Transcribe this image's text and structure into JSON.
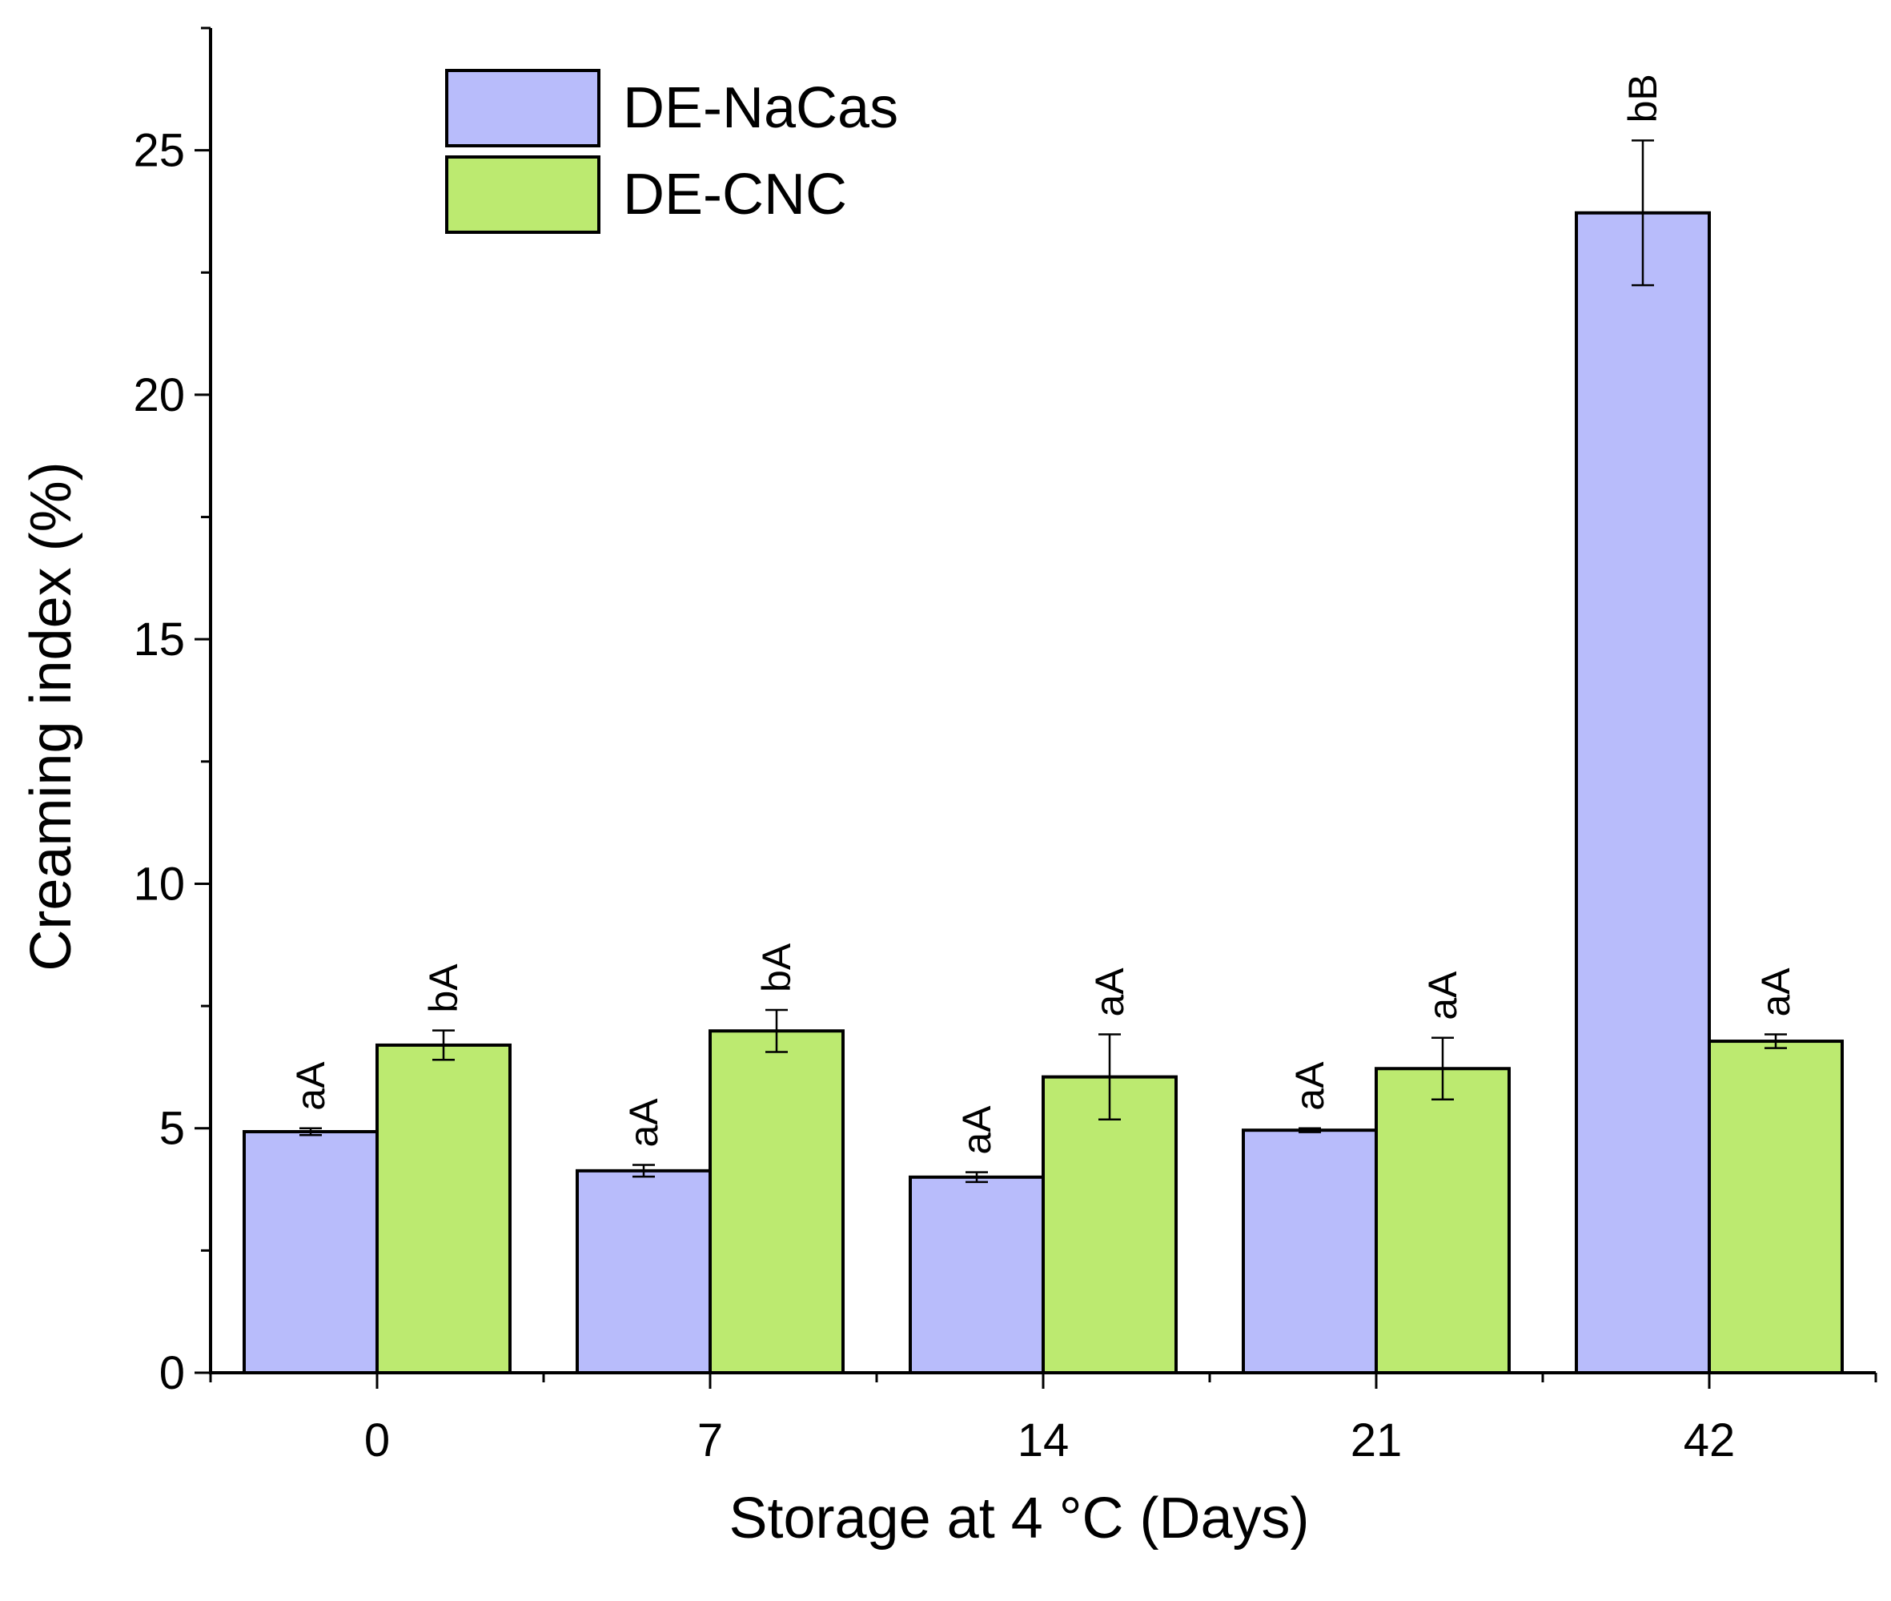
{
  "chart_data": {
    "type": "bar",
    "categories": [
      "0",
      "7",
      "14",
      "21",
      "42"
    ],
    "xlabel": "Storage at 4 °C (Days)",
    "ylabel": "Creaming index (%)",
    "ylim": [
      0,
      27.5
    ],
    "yticks": [
      "0",
      "5",
      "10",
      "15",
      "20",
      "25"
    ],
    "ytick_values": [
      0,
      5,
      10,
      15,
      20,
      25
    ],
    "legend_position": "top-left",
    "grid": false,
    "series": [
      {
        "name": "DE-NaCas",
        "color": "#b8bcfb",
        "values": [
          4.93,
          4.13,
          4.0,
          4.96,
          23.72
        ],
        "errors": [
          0.07,
          0.12,
          0.1,
          0.04,
          1.48
        ],
        "labels": [
          "aA",
          "aA",
          "aA",
          "aA",
          "bB"
        ]
      },
      {
        "name": "DE-CNC",
        "color": "#bcea70",
        "values": [
          6.7,
          6.99,
          6.05,
          6.22,
          6.78
        ],
        "errors": [
          0.3,
          0.43,
          0.87,
          0.63,
          0.14
        ],
        "labels": [
          "bA",
          "bA",
          "aA",
          "aA",
          "aA"
        ]
      }
    ]
  }
}
